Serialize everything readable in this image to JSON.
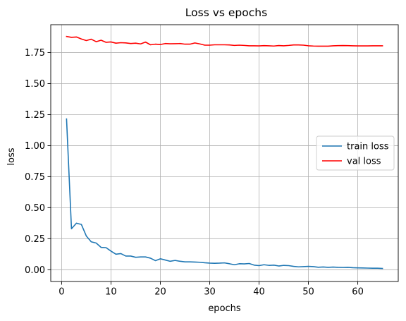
{
  "chart_data": {
    "type": "line",
    "title": "Loss vs epochs",
    "xlabel": "epochs",
    "ylabel": "loss",
    "xlim": [
      -2.2,
      68.2
    ],
    "ylim": [
      -0.095,
      1.975
    ],
    "xticks": [
      0,
      10,
      20,
      30,
      40,
      50,
      60
    ],
    "yticks": [
      0.0,
      0.25,
      0.5,
      0.75,
      1.0,
      1.25,
      1.5,
      1.75
    ],
    "ytick_labels": [
      "0.00",
      "0.25",
      "0.50",
      "0.75",
      "1.00",
      "1.25",
      "1.50",
      "1.75"
    ],
    "grid": true,
    "legend_position": "center-right",
    "x": [
      1,
      2,
      3,
      4,
      5,
      6,
      7,
      8,
      9,
      10,
      11,
      12,
      13,
      14,
      15,
      16,
      17,
      18,
      19,
      20,
      21,
      22,
      23,
      24,
      25,
      26,
      27,
      28,
      29,
      30,
      31,
      32,
      33,
      34,
      35,
      36,
      37,
      38,
      39,
      40,
      41,
      42,
      43,
      44,
      45,
      46,
      47,
      48,
      49,
      50,
      51,
      52,
      53,
      54,
      55,
      56,
      57,
      58,
      59,
      60,
      61,
      62,
      63,
      64,
      65
    ],
    "series": [
      {
        "name": "train loss",
        "color": "#1f77b4",
        "values": [
          1.215,
          0.33,
          0.375,
          0.365,
          0.272,
          0.225,
          0.215,
          0.18,
          0.178,
          0.15,
          0.125,
          0.13,
          0.11,
          0.11,
          0.1,
          0.103,
          0.103,
          0.093,
          0.073,
          0.088,
          0.078,
          0.068,
          0.075,
          0.068,
          0.063,
          0.063,
          0.062,
          0.06,
          0.056,
          0.053,
          0.052,
          0.053,
          0.055,
          0.048,
          0.04,
          0.048,
          0.047,
          0.05,
          0.037,
          0.033,
          0.04,
          0.035,
          0.037,
          0.03,
          0.035,
          0.033,
          0.027,
          0.023,
          0.025,
          0.027,
          0.025,
          0.02,
          0.022,
          0.019,
          0.021,
          0.019,
          0.018,
          0.019,
          0.016,
          0.015,
          0.014,
          0.013,
          0.012,
          0.012,
          0.01
        ]
      },
      {
        "name": "val loss",
        "color": "#ff0000",
        "values": [
          1.88,
          1.873,
          1.876,
          1.86,
          1.847,
          1.858,
          1.838,
          1.85,
          1.833,
          1.836,
          1.826,
          1.83,
          1.828,
          1.823,
          1.826,
          1.82,
          1.835,
          1.813,
          1.818,
          1.815,
          1.823,
          1.821,
          1.822,
          1.823,
          1.818,
          1.818,
          1.828,
          1.82,
          1.81,
          1.81,
          1.813,
          1.813,
          1.813,
          1.812,
          1.808,
          1.81,
          1.808,
          1.805,
          1.805,
          1.804,
          1.806,
          1.805,
          1.803,
          1.807,
          1.805,
          1.808,
          1.812,
          1.812,
          1.81,
          1.805,
          1.803,
          1.802,
          1.802,
          1.802,
          1.805,
          1.806,
          1.807,
          1.806,
          1.805,
          1.804,
          1.804,
          1.804,
          1.805,
          1.805,
          1.805
        ]
      }
    ]
  }
}
